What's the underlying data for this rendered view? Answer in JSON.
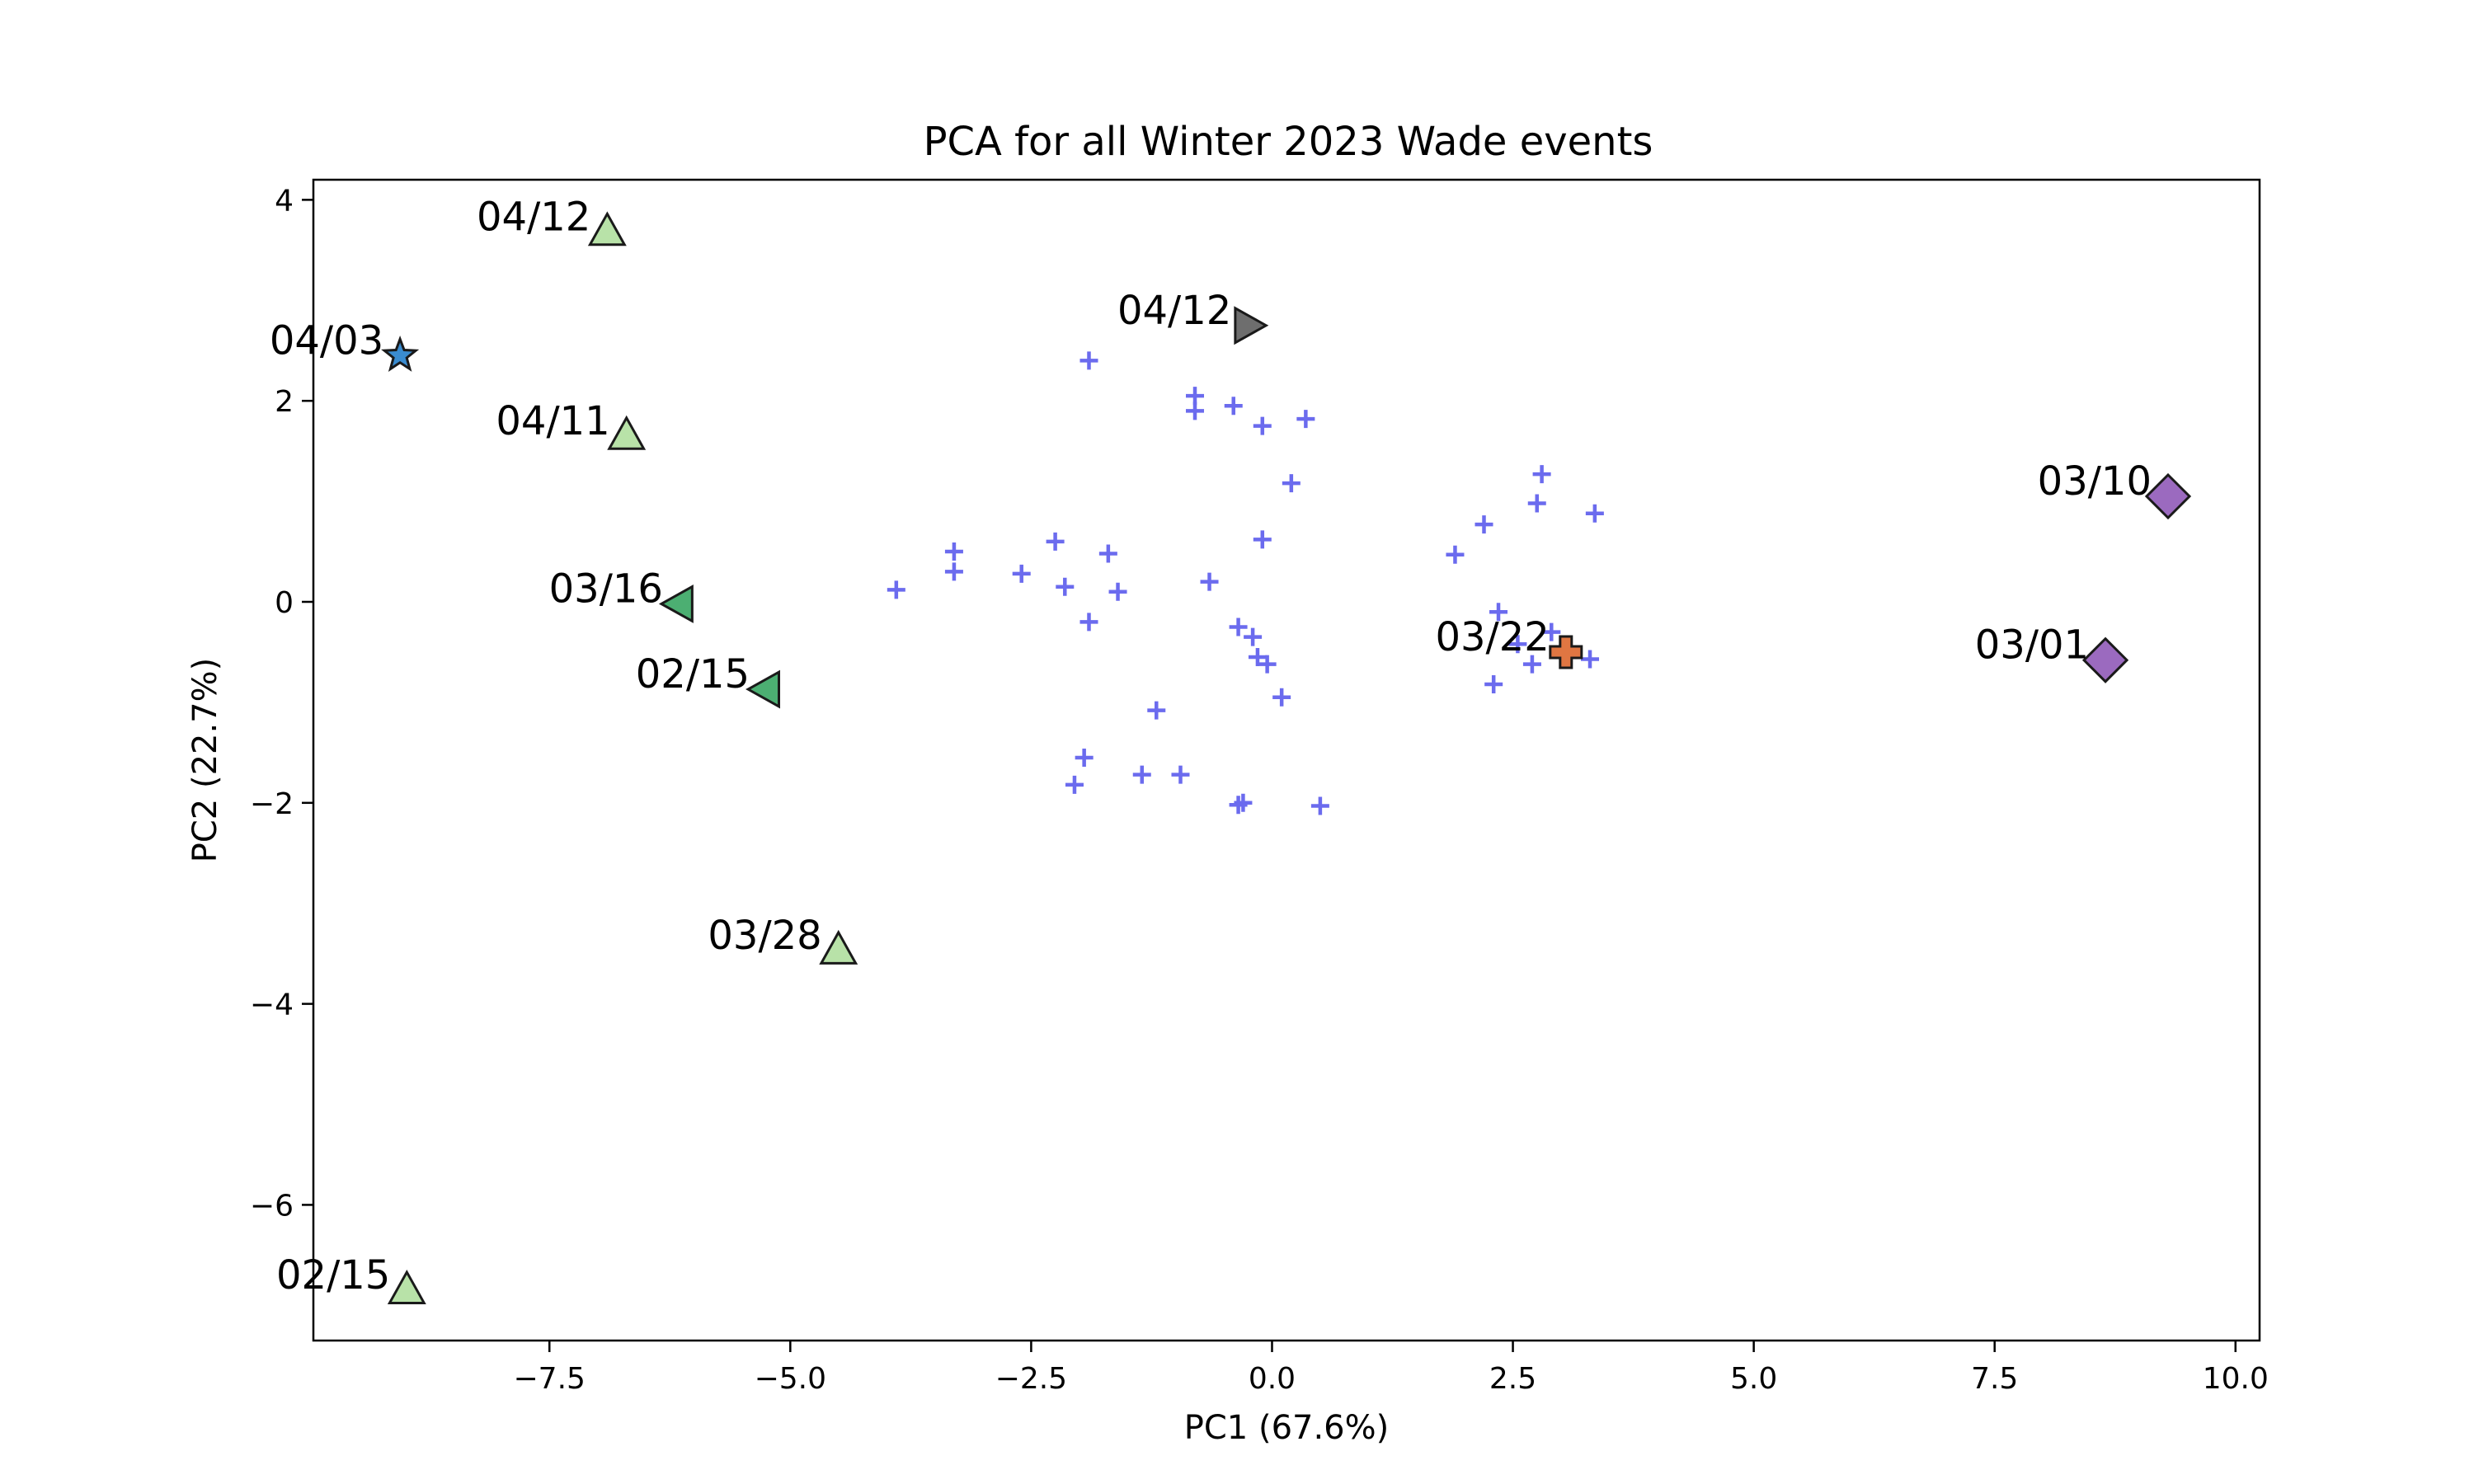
{
  "chart_data": {
    "type": "scatter",
    "title": "PCA for all Winter 2023 Wade events",
    "xlabel": "PC1 (67.6%)",
    "ylabel": "PC2 (22.7%)",
    "xlim": [
      -9.95,
      10.25
    ],
    "ylim": [
      -7.35,
      4.2
    ],
    "xticks": [
      -7.5,
      -5.0,
      -2.5,
      0.0,
      2.5,
      5.0,
      7.5,
      10.0
    ],
    "xtick_labels": [
      "−7.5",
      "−5.0",
      "−2.5",
      "0.0",
      "2.5",
      "5.0",
      "7.5",
      "10.0"
    ],
    "yticks": [
      -6,
      -4,
      -2,
      0,
      2,
      4
    ],
    "ytick_labels": [
      "−6",
      "−4",
      "−2",
      "0",
      "2",
      "4"
    ],
    "grid": false,
    "background_points": {
      "marker": "plus",
      "color": "#6b6bee",
      "points": [
        [
          -1.9,
          2.4
        ],
        [
          -0.8,
          2.05
        ],
        [
          -0.8,
          1.9
        ],
        [
          -0.4,
          1.95
        ],
        [
          -0.1,
          1.75
        ],
        [
          0.35,
          1.82
        ],
        [
          0.2,
          1.18
        ],
        [
          -0.1,
          0.62
        ],
        [
          -0.65,
          0.2
        ],
        [
          -3.3,
          0.5
        ],
        [
          -3.3,
          0.3
        ],
        [
          -3.9,
          0.12
        ],
        [
          -2.6,
          0.28
        ],
        [
          -2.25,
          0.6
        ],
        [
          -2.15,
          0.15
        ],
        [
          -1.7,
          0.48
        ],
        [
          -1.6,
          0.1
        ],
        [
          -1.9,
          -0.2
        ],
        [
          -0.35,
          -0.25
        ],
        [
          -0.2,
          -0.35
        ],
        [
          -0.15,
          -0.55
        ],
        [
          -0.05,
          -0.62
        ],
        [
          0.1,
          -0.95
        ],
        [
          -1.2,
          -1.08
        ],
        [
          -1.95,
          -1.55
        ],
        [
          -2.05,
          -1.82
        ],
        [
          -1.35,
          -1.72
        ],
        [
          -0.95,
          -1.72
        ],
        [
          -0.35,
          -2.02
        ],
        [
          -0.3,
          -2.0
        ],
        [
          0.5,
          -2.03
        ],
        [
          1.9,
          0.47
        ],
        [
          2.2,
          0.77
        ],
        [
          2.75,
          0.98
        ],
        [
          2.8,
          1.27
        ],
        [
          3.35,
          0.88
        ],
        [
          2.35,
          -0.1
        ],
        [
          2.55,
          -0.42
        ],
        [
          2.3,
          -0.82
        ],
        [
          2.7,
          -0.62
        ],
        [
          2.9,
          -0.3
        ],
        [
          3.3,
          -0.57
        ]
      ]
    },
    "labeled_points": [
      {
        "label": "04/12",
        "x": -6.9,
        "y": 3.68,
        "marker": "triangle-up",
        "color": "#b8e2a8"
      },
      {
        "label": "04/03",
        "x": -9.05,
        "y": 2.45,
        "marker": "star",
        "color": "#3a8cd0"
      },
      {
        "label": "04/11",
        "x": -6.7,
        "y": 1.65,
        "marker": "triangle-up",
        "color": "#b8e2a8"
      },
      {
        "label": "03/16",
        "x": -6.15,
        "y": -0.02,
        "marker": "triangle-left",
        "color": "#4caf72"
      },
      {
        "label": "02/15",
        "x": -5.25,
        "y": -0.87,
        "marker": "triangle-left",
        "color": "#4caf72"
      },
      {
        "label": "03/28",
        "x": -4.5,
        "y": -3.47,
        "marker": "triangle-up",
        "color": "#b8e2a8"
      },
      {
        "label": "02/15",
        "x": -8.98,
        "y": -6.85,
        "marker": "triangle-up",
        "color": "#b8e2a8"
      },
      {
        "label": "04/12",
        "x": -0.25,
        "y": 2.75,
        "marker": "triangle-right",
        "color": "#6e6e6e"
      },
      {
        "label": "03/22",
        "x": 3.05,
        "y": -0.5,
        "marker": "plus-filled",
        "color": "#e07642"
      },
      {
        "label": "03/10",
        "x": 9.3,
        "y": 1.05,
        "marker": "diamond",
        "color": "#9b6abf"
      },
      {
        "label": "03/01",
        "x": 8.65,
        "y": -0.58,
        "marker": "diamond",
        "color": "#9b6abf"
      }
    ]
  }
}
